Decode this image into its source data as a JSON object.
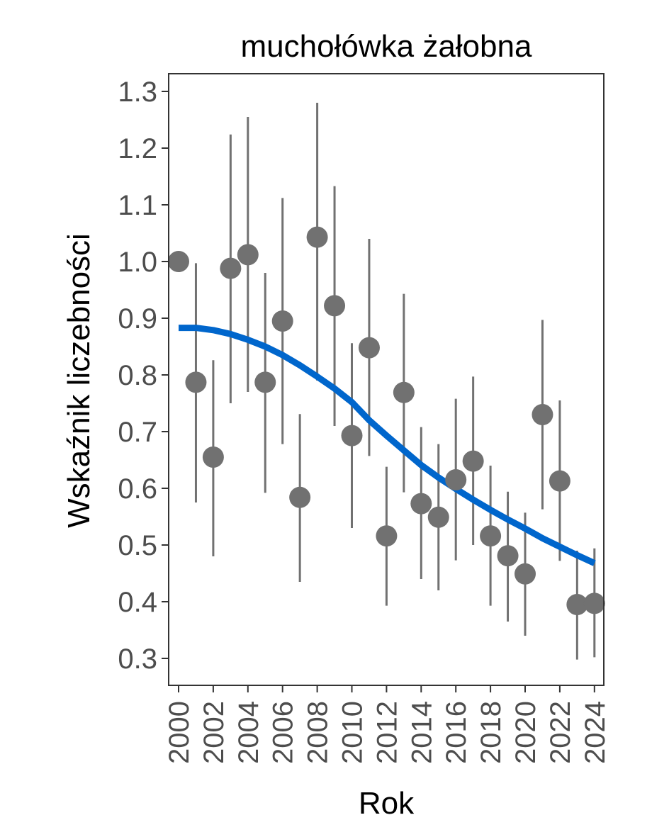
{
  "chart_data": {
    "type": "scatter",
    "title": "muchołówka żałobna",
    "xlabel": "Rok",
    "ylabel": "Wskaźnik liczebności",
    "xlim": [
      1999.8,
      2024.3
    ],
    "ylim": [
      0.3,
      1.3
    ],
    "x_ticks": [
      "2000",
      "2002",
      "2004",
      "2006",
      "2008",
      "2010",
      "2012",
      "2014",
      "2016",
      "2018",
      "2020",
      "2022",
      "2024"
    ],
    "y_ticks": [
      "0.3",
      "0.4",
      "0.5",
      "0.6",
      "0.7",
      "0.8",
      "0.9",
      "1.0",
      "1.1",
      "1.2",
      "1.3"
    ],
    "series": [
      {
        "name": "index",
        "x": [
          2000,
          2001,
          2002,
          2003,
          2004,
          2005,
          2006,
          2007,
          2008,
          2009,
          2010,
          2011,
          2012,
          2013,
          2014,
          2015,
          2016,
          2017,
          2018,
          2019,
          2020,
          2021,
          2022,
          2023,
          2024
        ],
        "y": [
          1.0,
          0.787,
          0.655,
          0.988,
          1.012,
          0.787,
          0.895,
          0.584,
          1.043,
          0.922,
          0.693,
          0.848,
          0.516,
          0.769,
          0.573,
          0.549,
          0.615,
          0.648,
          0.516,
          0.481,
          0.449,
          0.73,
          0.613,
          0.395,
          0.397
        ],
        "lower": [
          null,
          0.575,
          0.48,
          0.75,
          0.77,
          0.592,
          0.678,
          0.435,
          0.79,
          0.71,
          0.53,
          0.657,
          0.393,
          0.593,
          0.44,
          0.42,
          0.473,
          0.5,
          0.393,
          0.365,
          0.34,
          0.563,
          0.472,
          0.298,
          0.302
        ],
        "upper": [
          null,
          0.997,
          0.826,
          1.224,
          1.255,
          0.98,
          1.112,
          0.731,
          1.28,
          1.133,
          0.856,
          1.04,
          0.638,
          0.943,
          0.708,
          0.678,
          0.758,
          0.797,
          0.64,
          0.594,
          0.557,
          0.897,
          0.755,
          0.49,
          0.494
        ]
      },
      {
        "name": "trend",
        "x": [
          2000,
          2001,
          2002,
          2003,
          2004,
          2005,
          2006,
          2007,
          2008,
          2009,
          2010,
          2011,
          2012,
          2013,
          2014,
          2015,
          2016,
          2017,
          2018,
          2019,
          2020,
          2021,
          2022,
          2023,
          2024
        ],
        "y": [
          0.883,
          0.883,
          0.879,
          0.872,
          0.862,
          0.85,
          0.835,
          0.817,
          0.797,
          0.776,
          0.752,
          0.72,
          0.693,
          0.667,
          0.641,
          0.619,
          0.599,
          0.58,
          0.562,
          0.545,
          0.529,
          0.512,
          0.497,
          0.482,
          0.468
        ]
      }
    ],
    "colors": {
      "points": "#717171",
      "errorbars": "#717171",
      "trend": "#0066cc",
      "axis": "#333333"
    }
  }
}
